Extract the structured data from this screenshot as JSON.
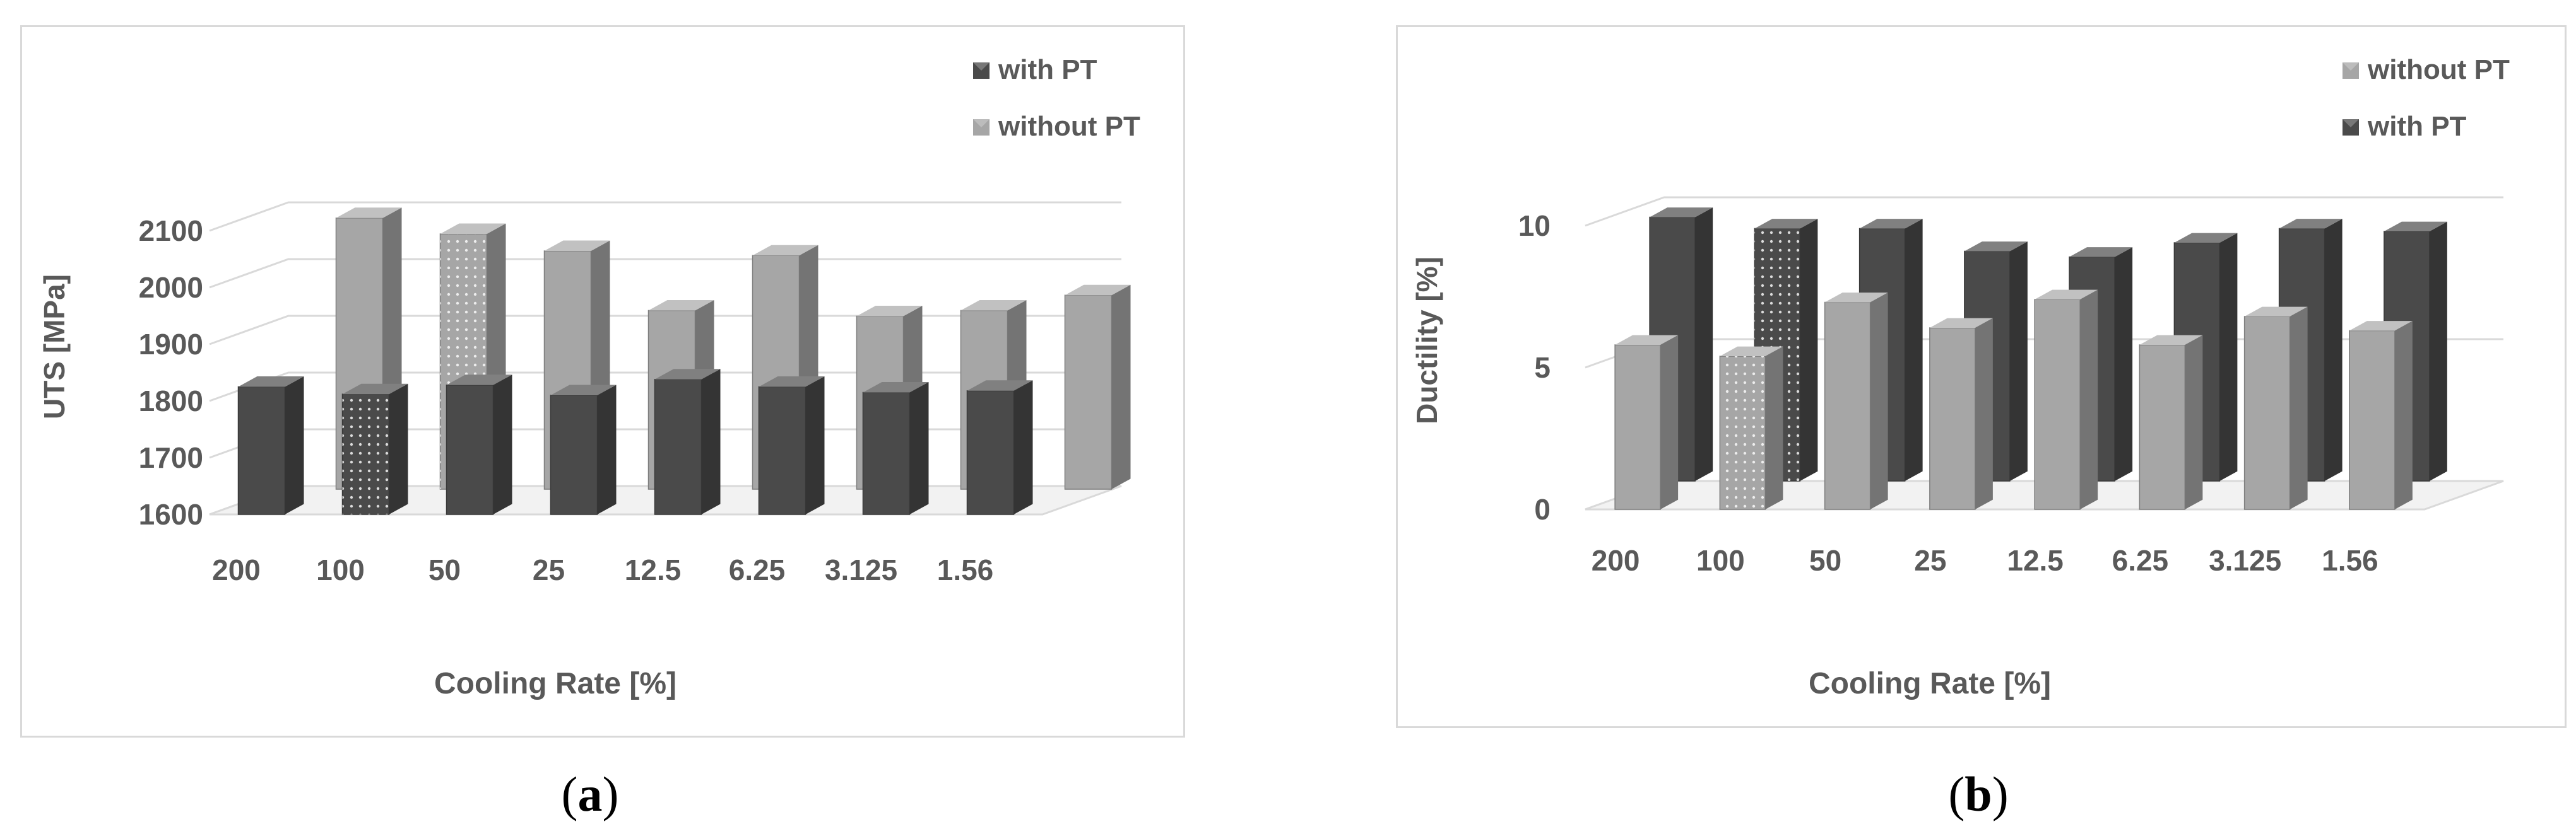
{
  "figure": {
    "panels": [
      {
        "caption_open": "(",
        "caption_letter": "a",
        "caption_close": ")"
      },
      {
        "caption_open": "(",
        "caption_letter": "b",
        "caption_close": ")"
      }
    ]
  },
  "colors": {
    "with_pt": "#4a4a4a",
    "without_pt": "#a6a6a6",
    "gridline": "#d9d9d9",
    "text": "#595959"
  },
  "chart_data": [
    {
      "type": "bar",
      "title": "",
      "xlabel": "Cooling Rate [%]",
      "ylabel": "UTS [MPa]",
      "categories": [
        "200",
        "100",
        "50",
        "25",
        "12.5",
        "6.25",
        "3.125",
        "1.56"
      ],
      "yticks": [
        "1600",
        "1700",
        "1800",
        "1900",
        "2000",
        "2100"
      ],
      "ylim": [
        1600,
        2100
      ],
      "grid": true,
      "legend_position": "top-right",
      "legend": [
        "with PT",
        "without PT"
      ],
      "series": [
        {
          "name": "with PT",
          "color": "#4a4a4a",
          "position": "front",
          "values": [
            1825,
            1812,
            1828,
            1810,
            1838,
            1825,
            1815,
            1818
          ]
        },
        {
          "name": "without PT",
          "color": "#a6a6a6",
          "position": "back",
          "values": [
            2078,
            2050,
            2020,
            1915,
            2012,
            1905,
            1915,
            1942
          ]
        }
      ],
      "highlight_category": "100"
    },
    {
      "type": "bar",
      "title": "",
      "xlabel": "Cooling Rate [%]",
      "ylabel": "Ductility [%]",
      "categories": [
        "200",
        "100",
        "50",
        "25",
        "12.5",
        "6.25",
        "3.125",
        "1.56"
      ],
      "yticks": [
        "0",
        "5",
        "10"
      ],
      "ylim": [
        0,
        10
      ],
      "grid": true,
      "legend_position": "top-right",
      "legend": [
        "without PT",
        "with PT"
      ],
      "series": [
        {
          "name": "without PT",
          "color": "#a6a6a6",
          "position": "front",
          "values": [
            5.8,
            5.4,
            7.3,
            6.4,
            7.4,
            5.8,
            6.8,
            6.3
          ]
        },
        {
          "name": "with PT",
          "color": "#4a4a4a",
          "position": "back",
          "values": [
            9.3,
            8.9,
            8.9,
            8.1,
            7.9,
            8.4,
            8.9,
            8.8
          ]
        }
      ],
      "highlight_category": "100"
    }
  ]
}
